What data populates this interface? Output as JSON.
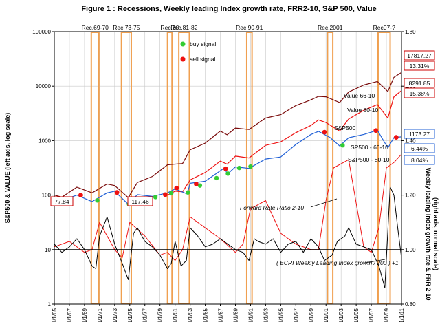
{
  "chart_data": {
    "type": "line",
    "title": "Figure 1 :  Recessions,   Weekly leading Index growth rate,   FRR2-10,   S&P 500,   Value",
    "ylabel_left": "S&P500  &  VALUE   (left axis, log scale)",
    "ylabel_right_1": "Weekly leading Index growth rate  &  FRR 2-10",
    "ylabel_right_2": "(right axis, normal scale)",
    "x_ticks": [
      "1/1/65",
      "1/1/67",
      "1/1/69",
      "1/1/71",
      "1/1/73",
      "1/1/75",
      "1/1/77",
      "1/1/79",
      "1/1/81",
      "1/1/83",
      "1/1/85",
      "1/1/87",
      "1/1/89",
      "1/1/91",
      "1/1/93",
      "1/1/95",
      "1/1/97",
      "1/1/99",
      "1/1/01",
      "1/1/03",
      "1/1/05",
      "1/1/07",
      "1/1/09",
      "1/1/11"
    ],
    "xlim": [
      1965,
      2011
    ],
    "left_axis": {
      "scale": "log",
      "ylim": [
        1,
        100000
      ],
      "ticks": [
        "1",
        "10",
        "100",
        "1000",
        "10000",
        "100000"
      ]
    },
    "right_axis": {
      "scale": "linear",
      "ylim": [
        0.8,
        1.8
      ],
      "ticks": [
        "0.80",
        "1.00",
        "1.20",
        "1.40",
        "1.60",
        "1.80"
      ]
    },
    "grid": true,
    "recessions": [
      {
        "label": "Rec.69-70",
        "start": 1969.9,
        "end": 1970.9
      },
      {
        "label": "Rec.73-75",
        "start": 1973.9,
        "end": 1975.2
      },
      {
        "label": "Rec.80",
        "start": 1980.0,
        "end": 1980.6
      },
      {
        "label": "Rec.81-82",
        "start": 1981.5,
        "end": 1982.9
      },
      {
        "label": "Rec.90-91",
        "start": 1990.5,
        "end": 1991.2
      },
      {
        "label": "Rec.2001",
        "start": 2001.2,
        "end": 2001.9
      },
      {
        "label": "Rec07-?",
        "start": 2007.9,
        "end": 2009.5
      }
    ],
    "legend": [
      {
        "label": "buy signal",
        "color": "#33cc33"
      },
      {
        "label": "sell signal",
        "color": "#ee1111"
      }
    ],
    "series": [
      {
        "name": "Value 66-10",
        "axis": "left",
        "color": "#7a0a0a",
        "x": [
          1965,
          1966,
          1968,
          1970,
          1972,
          1973,
          1974.8,
          1976,
          1978,
          1980,
          1982,
          1983,
          1985,
          1987,
          1987.9,
          1989,
          1990.8,
          1993,
          1995,
          1997,
          1999,
          2000,
          2001,
          2002.8,
          2004,
          2006,
          2007.8,
          2009.2,
          2010,
          2011
        ],
        "y": [
          100,
          92,
          140,
          110,
          160,
          150,
          90,
          170,
          220,
          360,
          380,
          680,
          900,
          1500,
          1280,
          1700,
          1600,
          2600,
          3000,
          4400,
          5600,
          6500,
          6400,
          5000,
          7800,
          10500,
          12200,
          8000,
          14500,
          17817
        ]
      },
      {
        "name": "Value 80-10",
        "axis": "left",
        "color": "#ee1111",
        "x": [
          1980,
          1981,
          1982,
          1983,
          1985,
          1987,
          1987.9,
          1989,
          1990.8,
          1993,
          1995,
          1997,
          1999,
          2000,
          2001,
          2002.8,
          2004,
          2006,
          2007.8,
          2009.2,
          2010,
          2011
        ],
        "y": [
          100,
          118,
          115,
          190,
          260,
          420,
          370,
          520,
          480,
          820,
          950,
          1400,
          1900,
          2400,
          2150,
          1500,
          2500,
          3600,
          4600,
          2600,
          6400,
          8292
        ]
      },
      {
        "name": "S&P500",
        "axis": "left",
        "color": "#1f5fd6",
        "x": [
          1965,
          1966,
          1968,
          1970,
          1972,
          1973,
          1974.8,
          1976,
          1978,
          1980,
          1981,
          1982.6,
          1983,
          1985,
          1987.6,
          1987.9,
          1989,
          1990.8,
          1993,
          1995,
          1997,
          1999,
          2000,
          2001.5,
          2002.8,
          2004,
          2006,
          2007.8,
          2009.2,
          2010,
          2011
        ],
        "y": [
          86,
          80,
          100,
          76,
          110,
          118,
          68,
          102,
          95,
          110,
          130,
          105,
          165,
          180,
          320,
          240,
          330,
          310,
          460,
          500,
          850,
          1300,
          1480,
          1150,
          800,
          1130,
          1300,
          1550,
          735,
          1140,
          1173
        ]
      },
      {
        "name": "Forward Rate Ratio 2-10",
        "axis": "right",
        "color": "#ee1111",
        "x": [
          1965,
          1967,
          1969,
          1970,
          1971,
          1973,
          1974,
          1975,
          1977,
          1979,
          1980,
          1981,
          1982,
          1983,
          1985,
          1987,
          1989,
          1990,
          1991,
          1993,
          1995,
          1997,
          1999,
          2000,
          2001,
          2002,
          2004,
          2006,
          2007,
          2008,
          2009,
          2010,
          2011
        ],
        "y": [
          1.01,
          1.03,
          0.99,
          1.0,
          1.1,
          1.0,
          0.97,
          1.1,
          1.05,
          0.98,
          0.99,
          0.96,
          1.0,
          1.12,
          1.08,
          1.04,
          0.99,
          1.02,
          1.15,
          1.18,
          1.06,
          1.02,
          1.0,
          1.0,
          1.18,
          1.3,
          1.33,
          1.01,
          0.99,
          1.08,
          1.3,
          1.32,
          1.35
        ]
      },
      {
        "name": "( ECRI Weekly Leading Index growth / 200 ) +1",
        "axis": "right",
        "color": "#000000",
        "x": [
          1965,
          1966,
          1967,
          1968,
          1969,
          1970,
          1970.5,
          1971,
          1972,
          1973,
          1974,
          1974.8,
          1975.5,
          1976,
          1977,
          1978,
          1979,
          1980,
          1980.5,
          1981,
          1981.8,
          1982.5,
          1983,
          1984,
          1985,
          1986,
          1987,
          1988,
          1989,
          1990,
          1990.8,
          1991.5,
          1992,
          1993,
          1994,
          1995,
          1996,
          1997,
          1998,
          1999,
          2000,
          2000.8,
          2001.8,
          2002.5,
          2003.5,
          2004,
          2005,
          2006,
          2007,
          2008,
          2008.8,
          2009.5,
          2010,
          2010.5,
          2011
        ],
        "y": [
          1.02,
          0.99,
          1.01,
          1.04,
          1.0,
          0.94,
          0.93,
          1.05,
          1.12,
          1.02,
          0.95,
          0.89,
          1.06,
          1.08,
          1.03,
          1.01,
          0.98,
          0.93,
          0.95,
          1.03,
          0.94,
          0.96,
          1.08,
          1.05,
          1.01,
          1.02,
          1.04,
          1.02,
          1.0,
          0.99,
          0.96,
          1.04,
          1.03,
          1.02,
          1.04,
          0.99,
          1.02,
          1.03,
          0.99,
          1.04,
          1.01,
          0.96,
          0.98,
          1.03,
          1.05,
          1.08,
          1.02,
          1.01,
          1.0,
          0.94,
          0.86,
          1.23,
          1.2,
          1.08,
          0.97
        ]
      }
    ],
    "buy_signals": [
      {
        "x": 1965.5,
        "y": 82
      },
      {
        "x": 1970.7,
        "y": 80
      },
      {
        "x": 1974.9,
        "y": 68
      },
      {
        "x": 1978.4,
        "y": 92
      },
      {
        "x": 1980.5,
        "y": 108
      },
      {
        "x": 1982.7,
        "y": 112
      },
      {
        "x": 1984.3,
        "y": 150
      },
      {
        "x": 1986.5,
        "y": 205
      },
      {
        "x": 1988.0,
        "y": 248
      },
      {
        "x": 1989.5,
        "y": 315
      },
      {
        "x": 1991.0,
        "y": 335
      },
      {
        "x": 2003.2,
        "y": 820
      }
    ],
    "sell_signals": [
      {
        "x": 1968.5,
        "y": 100
      },
      {
        "x": 1973.3,
        "y": 112
      },
      {
        "x": 1979.7,
        "y": 102
      },
      {
        "x": 1981.2,
        "y": 135
      },
      {
        "x": 1983.8,
        "y": 160
      },
      {
        "x": 1987.7,
        "y": 305
      },
      {
        "x": 2000.8,
        "y": 1430
      },
      {
        "x": 2007.6,
        "y": 1530
      },
      {
        "x": 2010.3,
        "y": 1150
      }
    ],
    "annotations": {
      "value66_label": "Value 66-10",
      "value80_label": "Value 80-10",
      "sp500_label": "S&P500",
      "sp500_66_label": "SP500 - 66-10",
      "sp500_80_label": "S&P500 - 80-10",
      "frr_label": "Forward Rate Ratio 2-10",
      "ecri_label": "( ECRI Weekly Leading Index growth / 200 ) +1",
      "box_7784": "77.84",
      "box_11746": "117.46",
      "right_box_1": "17817.27",
      "right_box_2": "13.31%",
      "right_box_3": "8291.85",
      "right_box_4": "15.38%",
      "right_box_5": "1173.27",
      "right_box_6": "6.44%",
      "right_box_7": "8.04%"
    },
    "colors": {
      "recession": "#f0a050",
      "value66": "#7a0a0a",
      "value80": "#ee1111",
      "sp500": "#1f5fd6",
      "frr": "#ee1111",
      "ecri": "#000000",
      "grid": "#c8c8c8",
      "dark_line": "#000000"
    }
  }
}
